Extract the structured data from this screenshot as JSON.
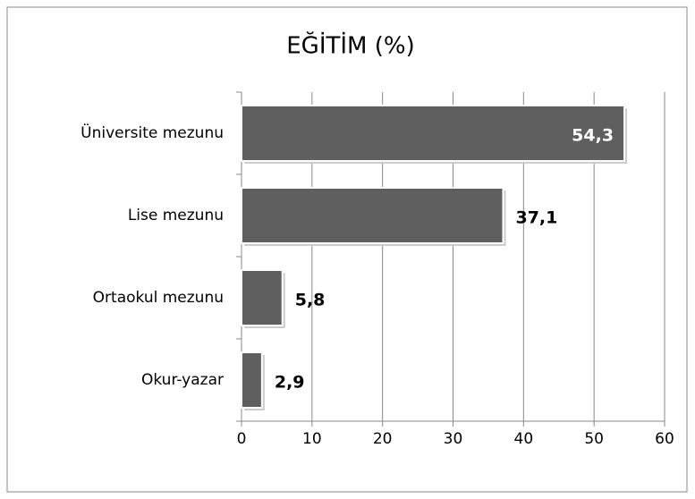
{
  "chart_data": {
    "type": "bar",
    "orientation": "horizontal",
    "title": "EĞİTİM (%)",
    "categories": [
      "Üniversite mezunu",
      "Lise mezunu",
      "Ortaokul mezunu",
      "Okur-yazar"
    ],
    "values": [
      54.3,
      37.1,
      5.8,
      2.9
    ],
    "value_labels": [
      "54,3",
      "37,1",
      "5,8",
      "2,9"
    ],
    "color": "#5f5f5f",
    "xlim": [
      0,
      60
    ],
    "xticks": [
      0,
      10,
      20,
      30,
      40,
      50,
      60
    ],
    "grid": true
  }
}
